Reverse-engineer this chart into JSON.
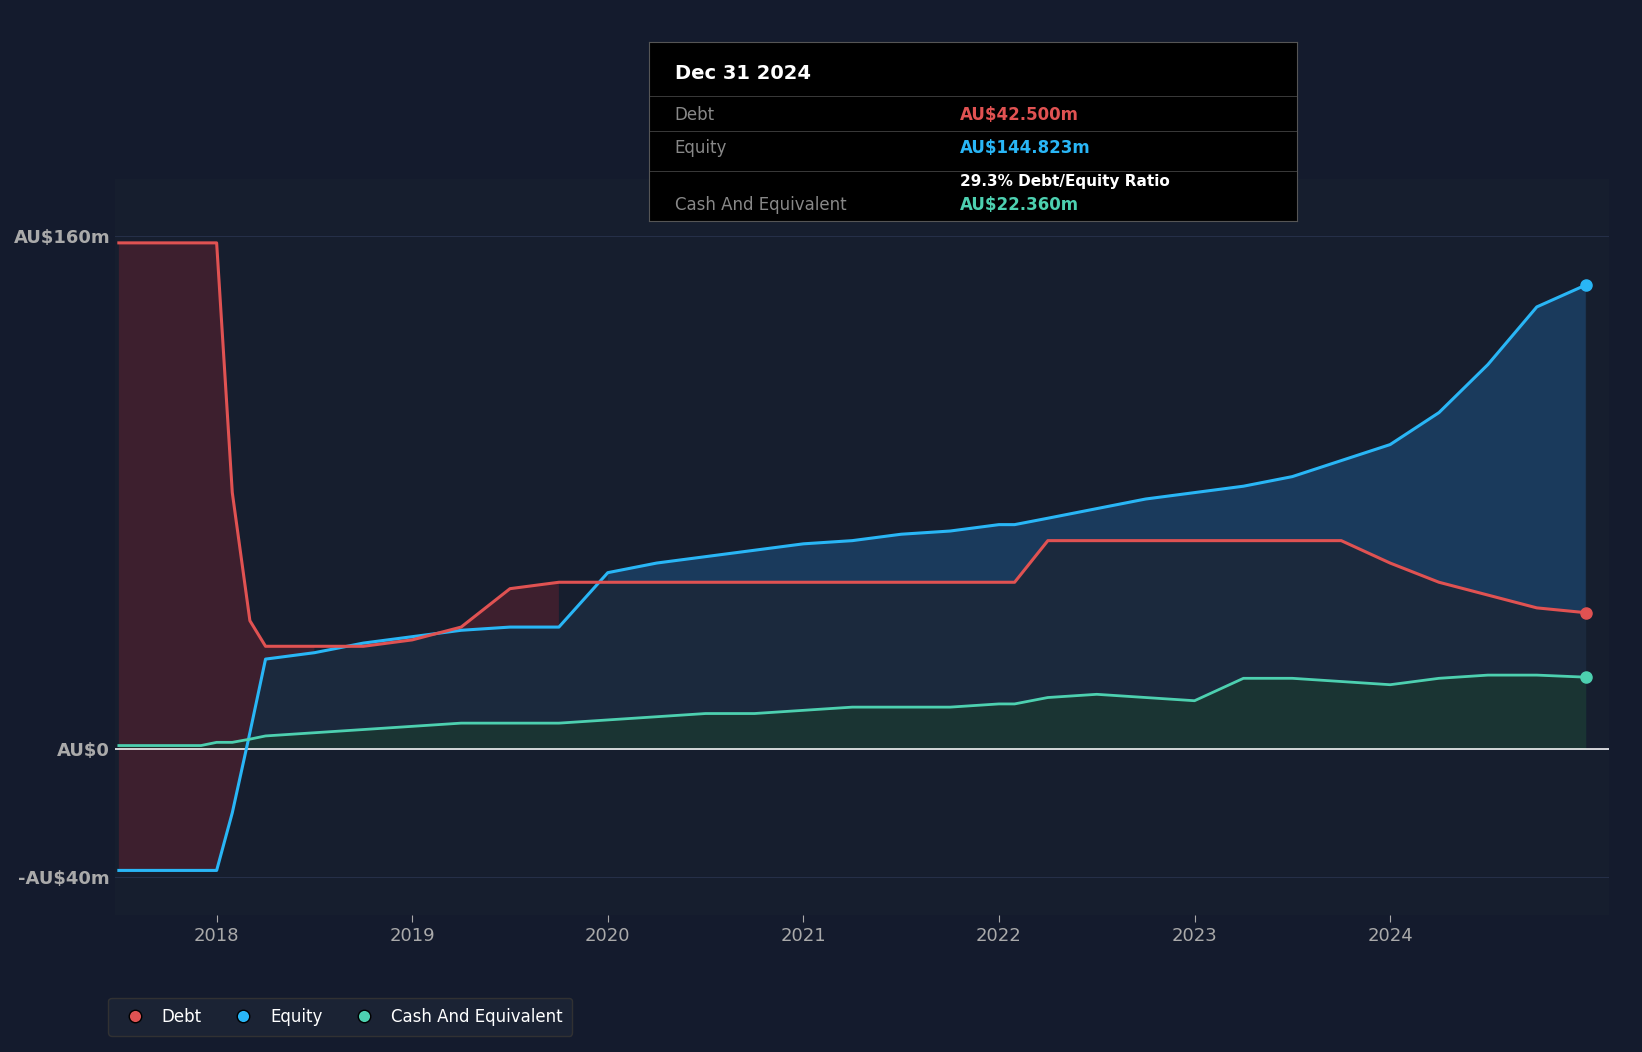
{
  "bg_color": "#141B2D",
  "plot_bg_color": "#161E2E",
  "debt_color": "#E05252",
  "equity_color": "#29B6F6",
  "cash_color": "#4DD0B0",
  "ylabel_color": "#CCCCCC",
  "grid_color": "#2A3550",
  "text_color": "#FFFFFF",
  "label_color": "#AAAAAA",
  "ytick_vals": [
    -40,
    0,
    160
  ],
  "ytick_labels": [
    "-AU$40m",
    "AU$0",
    "AU$160m"
  ],
  "ylim": [
    -52,
    178
  ],
  "tooltip": {
    "date": "Dec 31 2024",
    "debt_label": "Debt",
    "debt_value": "AU$42.500m",
    "equity_label": "Equity",
    "equity_value": "AU$144.823m",
    "ratio_text": "29.3% Debt/Equity Ratio",
    "cash_label": "Cash And Equivalent",
    "cash_value": "AU$22.360m"
  },
  "legend": [
    {
      "label": "Debt",
      "color": "#E05252"
    },
    {
      "label": "Equity",
      "color": "#29B6F6"
    },
    {
      "label": "Cash And Equivalent",
      "color": "#4DD0B0"
    }
  ],
  "dates": [
    2017.5,
    2017.58,
    2017.67,
    2017.75,
    2017.83,
    2017.92,
    2018.0,
    2018.08,
    2018.17,
    2018.25,
    2018.5,
    2018.75,
    2019.0,
    2019.25,
    2019.5,
    2019.75,
    2020.0,
    2020.25,
    2020.5,
    2020.75,
    2021.0,
    2021.25,
    2021.5,
    2021.75,
    2022.0,
    2022.08,
    2022.25,
    2022.5,
    2022.75,
    2023.0,
    2023.25,
    2023.5,
    2023.75,
    2024.0,
    2024.25,
    2024.5,
    2024.75,
    2025.0
  ],
  "debt": [
    158,
    158,
    158,
    158,
    158,
    158,
    158,
    80,
    40,
    32,
    32,
    32,
    34,
    38,
    50,
    52,
    52,
    52,
    52,
    52,
    52,
    52,
    52,
    52,
    52,
    52,
    65,
    65,
    65,
    65,
    65,
    65,
    65,
    58,
    52,
    48,
    44,
    42.5
  ],
  "equity": [
    -38,
    -38,
    -38,
    -38,
    -38,
    -38,
    -38,
    -20,
    5,
    28,
    30,
    33,
    35,
    37,
    38,
    38,
    55,
    58,
    60,
    62,
    64,
    65,
    67,
    68,
    70,
    70,
    72,
    75,
    78,
    80,
    82,
    85,
    90,
    95,
    105,
    120,
    138,
    144.823
  ],
  "cash": [
    1,
    1,
    1,
    1,
    1,
    1,
    2,
    2,
    3,
    4,
    5,
    6,
    7,
    8,
    8,
    8,
    9,
    10,
    11,
    11,
    12,
    13,
    13,
    13,
    14,
    14,
    16,
    17,
    16,
    15,
    22,
    22,
    21,
    20,
    22,
    23,
    23,
    22.36
  ],
  "xtick_positions": [
    2018,
    2019,
    2020,
    2021,
    2022,
    2023,
    2024
  ],
  "xtick_labels": [
    "2018",
    "2019",
    "2020",
    "2021",
    "2022",
    "2023",
    "2024"
  ]
}
